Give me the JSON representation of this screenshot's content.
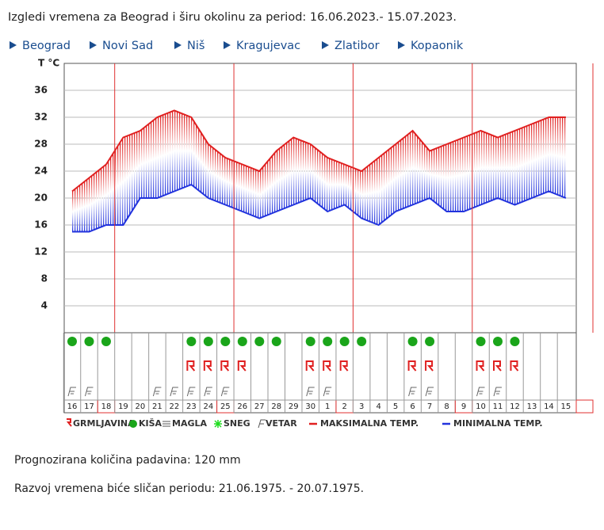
{
  "header": {
    "title": "Izgledi vremena za Beograd i širu okolinu za period: 16.06.2023.- 15.07.2023."
  },
  "links": [
    "Beograd",
    "Novi Sad",
    "Niš",
    "Kragujevac",
    "Zlatibor",
    "Kopaonik"
  ],
  "chart_data": {
    "type": "line",
    "y_label": "T °C",
    "categories": [
      "16",
      "17",
      "18",
      "19",
      "20",
      "21",
      "22",
      "23",
      "24",
      "25",
      "26",
      "27",
      "28",
      "29",
      "30",
      "1",
      "2",
      "3",
      "4",
      "5",
      "6",
      "7",
      "8",
      "9",
      "10",
      "11",
      "12",
      "13",
      "14",
      "15"
    ],
    "series": [
      {
        "name": "MAKSIMALNA TEMP.",
        "color": "#e02020",
        "values": [
          21,
          23,
          25,
          29,
          30,
          32,
          33,
          32,
          28,
          26,
          25,
          24,
          27,
          29,
          28,
          26,
          25,
          24,
          26,
          28,
          30,
          27,
          28,
          29,
          30,
          29,
          30,
          31,
          32,
          32
        ]
      },
      {
        "name": "MINIMALNA TEMP.",
        "color": "#2233dd",
        "values": [
          15,
          15,
          16,
          16,
          20,
          20,
          21,
          22,
          20,
          19,
          18,
          17,
          18,
          19,
          20,
          18,
          19,
          17,
          16,
          18,
          19,
          20,
          18,
          18,
          19,
          20,
          19,
          20,
          21,
          20
        ]
      }
    ],
    "ylim": [
      0,
      40
    ],
    "yticks": [
      4,
      8,
      12,
      16,
      20,
      24,
      28,
      32,
      36
    ],
    "grid": true,
    "rain": [
      true,
      true,
      true,
      false,
      false,
      false,
      false,
      true,
      true,
      true,
      true,
      true,
      true,
      false,
      true,
      true,
      true,
      true,
      false,
      false,
      true,
      true,
      false,
      false,
      true,
      true,
      true,
      false,
      false,
      false
    ],
    "thunder": [
      false,
      false,
      false,
      false,
      false,
      false,
      false,
      true,
      true,
      true,
      true,
      false,
      false,
      false,
      true,
      true,
      true,
      false,
      false,
      false,
      true,
      true,
      false,
      false,
      true,
      true,
      true,
      false,
      false,
      false
    ],
    "wind": [
      true,
      true,
      false,
      false,
      false,
      true,
      true,
      true,
      true,
      true,
      false,
      false,
      false,
      false,
      true,
      true,
      false,
      false,
      false,
      false,
      true,
      true,
      false,
      false,
      true,
      true,
      false,
      false,
      false,
      false
    ],
    "boxed": [
      false,
      false,
      true,
      false,
      false,
      false,
      false,
      false,
      false,
      true,
      false,
      false,
      false,
      false,
      false,
      false,
      true,
      false,
      false,
      false,
      false,
      false,
      false,
      true,
      false,
      false,
      false,
      false,
      false,
      false
    ],
    "legend": [
      "GRMLJAVINA",
      "KIŠA",
      "MAGLA",
      "SNEG",
      "VETAR"
    ]
  },
  "footer": {
    "precipitation": "Prognozirana količina padavina:  120  mm",
    "similar": "Razvoj vremena biće sličan periodu: 21.06.1975. - 20.07.1975."
  }
}
